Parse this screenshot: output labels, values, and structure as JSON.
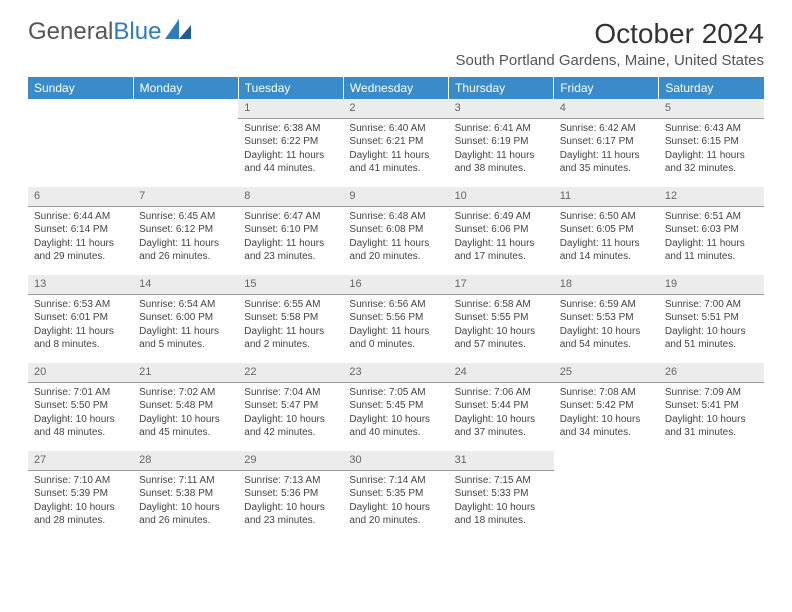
{
  "brand": {
    "part1": "General",
    "part2": "Blue"
  },
  "title": "October 2024",
  "location": "South Portland Gardens, Maine, United States",
  "colors": {
    "header_bg": "#3a8bc9",
    "header_fg": "#ffffff",
    "daynum_bg": "#ececec",
    "daynum_border": "#999999",
    "text": "#444444",
    "brand_gray": "#555555",
    "brand_blue": "#2e7bbf"
  },
  "weekdays": [
    "Sunday",
    "Monday",
    "Tuesday",
    "Wednesday",
    "Thursday",
    "Friday",
    "Saturday"
  ],
  "weeks": [
    [
      {
        "empty": true
      },
      {
        "empty": true
      },
      {
        "day": "1",
        "sunrise": "Sunrise: 6:38 AM",
        "sunset": "Sunset: 6:22 PM",
        "daylight": "Daylight: 11 hours and 44 minutes."
      },
      {
        "day": "2",
        "sunrise": "Sunrise: 6:40 AM",
        "sunset": "Sunset: 6:21 PM",
        "daylight": "Daylight: 11 hours and 41 minutes."
      },
      {
        "day": "3",
        "sunrise": "Sunrise: 6:41 AM",
        "sunset": "Sunset: 6:19 PM",
        "daylight": "Daylight: 11 hours and 38 minutes."
      },
      {
        "day": "4",
        "sunrise": "Sunrise: 6:42 AM",
        "sunset": "Sunset: 6:17 PM",
        "daylight": "Daylight: 11 hours and 35 minutes."
      },
      {
        "day": "5",
        "sunrise": "Sunrise: 6:43 AM",
        "sunset": "Sunset: 6:15 PM",
        "daylight": "Daylight: 11 hours and 32 minutes."
      }
    ],
    [
      {
        "day": "6",
        "sunrise": "Sunrise: 6:44 AM",
        "sunset": "Sunset: 6:14 PM",
        "daylight": "Daylight: 11 hours and 29 minutes."
      },
      {
        "day": "7",
        "sunrise": "Sunrise: 6:45 AM",
        "sunset": "Sunset: 6:12 PM",
        "daylight": "Daylight: 11 hours and 26 minutes."
      },
      {
        "day": "8",
        "sunrise": "Sunrise: 6:47 AM",
        "sunset": "Sunset: 6:10 PM",
        "daylight": "Daylight: 11 hours and 23 minutes."
      },
      {
        "day": "9",
        "sunrise": "Sunrise: 6:48 AM",
        "sunset": "Sunset: 6:08 PM",
        "daylight": "Daylight: 11 hours and 20 minutes."
      },
      {
        "day": "10",
        "sunrise": "Sunrise: 6:49 AM",
        "sunset": "Sunset: 6:06 PM",
        "daylight": "Daylight: 11 hours and 17 minutes."
      },
      {
        "day": "11",
        "sunrise": "Sunrise: 6:50 AM",
        "sunset": "Sunset: 6:05 PM",
        "daylight": "Daylight: 11 hours and 14 minutes."
      },
      {
        "day": "12",
        "sunrise": "Sunrise: 6:51 AM",
        "sunset": "Sunset: 6:03 PM",
        "daylight": "Daylight: 11 hours and 11 minutes."
      }
    ],
    [
      {
        "day": "13",
        "sunrise": "Sunrise: 6:53 AM",
        "sunset": "Sunset: 6:01 PM",
        "daylight": "Daylight: 11 hours and 8 minutes."
      },
      {
        "day": "14",
        "sunrise": "Sunrise: 6:54 AM",
        "sunset": "Sunset: 6:00 PM",
        "daylight": "Daylight: 11 hours and 5 minutes."
      },
      {
        "day": "15",
        "sunrise": "Sunrise: 6:55 AM",
        "sunset": "Sunset: 5:58 PM",
        "daylight": "Daylight: 11 hours and 2 minutes."
      },
      {
        "day": "16",
        "sunrise": "Sunrise: 6:56 AM",
        "sunset": "Sunset: 5:56 PM",
        "daylight": "Daylight: 11 hours and 0 minutes."
      },
      {
        "day": "17",
        "sunrise": "Sunrise: 6:58 AM",
        "sunset": "Sunset: 5:55 PM",
        "daylight": "Daylight: 10 hours and 57 minutes."
      },
      {
        "day": "18",
        "sunrise": "Sunrise: 6:59 AM",
        "sunset": "Sunset: 5:53 PM",
        "daylight": "Daylight: 10 hours and 54 minutes."
      },
      {
        "day": "19",
        "sunrise": "Sunrise: 7:00 AM",
        "sunset": "Sunset: 5:51 PM",
        "daylight": "Daylight: 10 hours and 51 minutes."
      }
    ],
    [
      {
        "day": "20",
        "sunrise": "Sunrise: 7:01 AM",
        "sunset": "Sunset: 5:50 PM",
        "daylight": "Daylight: 10 hours and 48 minutes."
      },
      {
        "day": "21",
        "sunrise": "Sunrise: 7:02 AM",
        "sunset": "Sunset: 5:48 PM",
        "daylight": "Daylight: 10 hours and 45 minutes."
      },
      {
        "day": "22",
        "sunrise": "Sunrise: 7:04 AM",
        "sunset": "Sunset: 5:47 PM",
        "daylight": "Daylight: 10 hours and 42 minutes."
      },
      {
        "day": "23",
        "sunrise": "Sunrise: 7:05 AM",
        "sunset": "Sunset: 5:45 PM",
        "daylight": "Daylight: 10 hours and 40 minutes."
      },
      {
        "day": "24",
        "sunrise": "Sunrise: 7:06 AM",
        "sunset": "Sunset: 5:44 PM",
        "daylight": "Daylight: 10 hours and 37 minutes."
      },
      {
        "day": "25",
        "sunrise": "Sunrise: 7:08 AM",
        "sunset": "Sunset: 5:42 PM",
        "daylight": "Daylight: 10 hours and 34 minutes."
      },
      {
        "day": "26",
        "sunrise": "Sunrise: 7:09 AM",
        "sunset": "Sunset: 5:41 PM",
        "daylight": "Daylight: 10 hours and 31 minutes."
      }
    ],
    [
      {
        "day": "27",
        "sunrise": "Sunrise: 7:10 AM",
        "sunset": "Sunset: 5:39 PM",
        "daylight": "Daylight: 10 hours and 28 minutes."
      },
      {
        "day": "28",
        "sunrise": "Sunrise: 7:11 AM",
        "sunset": "Sunset: 5:38 PM",
        "daylight": "Daylight: 10 hours and 26 minutes."
      },
      {
        "day": "29",
        "sunrise": "Sunrise: 7:13 AM",
        "sunset": "Sunset: 5:36 PM",
        "daylight": "Daylight: 10 hours and 23 minutes."
      },
      {
        "day": "30",
        "sunrise": "Sunrise: 7:14 AM",
        "sunset": "Sunset: 5:35 PM",
        "daylight": "Daylight: 10 hours and 20 minutes."
      },
      {
        "day": "31",
        "sunrise": "Sunrise: 7:15 AM",
        "sunset": "Sunset: 5:33 PM",
        "daylight": "Daylight: 10 hours and 18 minutes."
      },
      {
        "empty": true
      },
      {
        "empty": true
      }
    ]
  ]
}
